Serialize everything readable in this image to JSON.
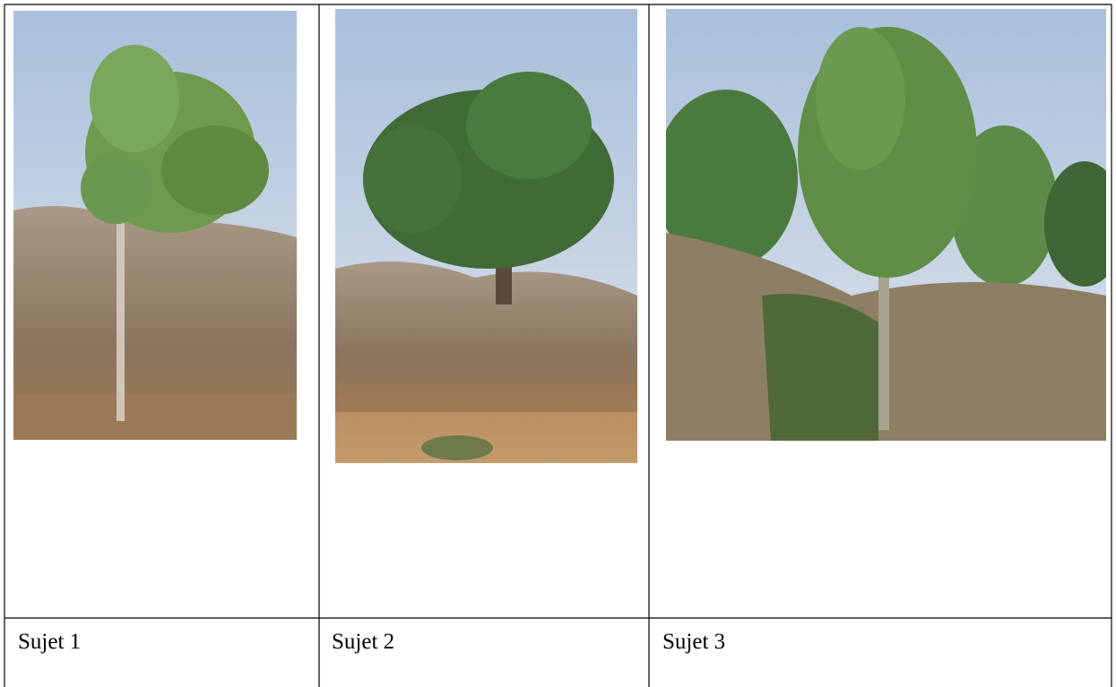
{
  "table": {
    "captions": [
      "Sujet 1",
      "Sujet 2",
      "Sujet 3"
    ]
  }
}
